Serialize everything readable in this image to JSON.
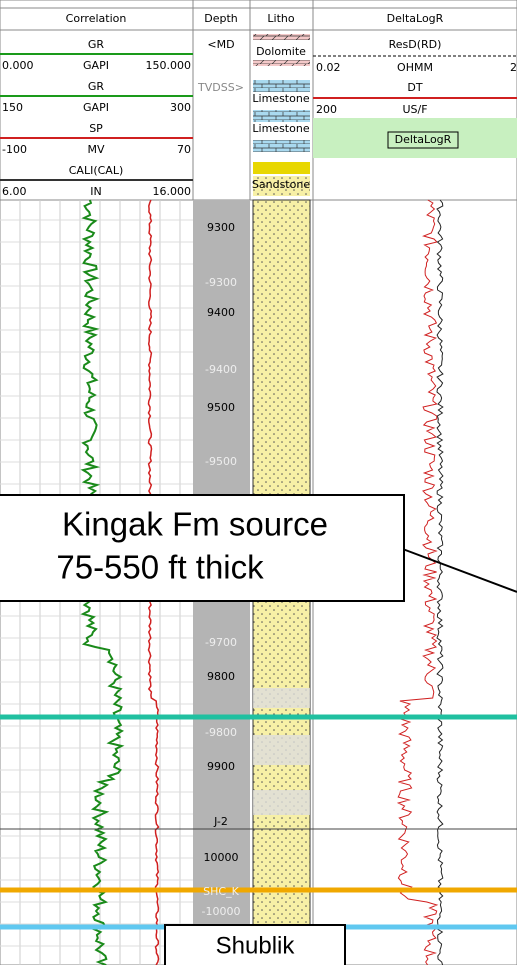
{
  "header": {
    "correlation": {
      "title": "Correlation",
      "tracks": [
        {
          "name": "GR",
          "min": "0.000",
          "unit": "GAPI",
          "max": "150.000"
        },
        {
          "name": "GR",
          "min": "150",
          "unit": "GAPI",
          "max": "300"
        },
        {
          "name": "SP",
          "min": "-100",
          "unit": "MV",
          "max": "70"
        },
        {
          "name": "CALI(CAL)",
          "min": "6.00",
          "unit": "IN",
          "max": "16.000"
        }
      ]
    },
    "depth": {
      "title": "Depth",
      "md": "<MD",
      "tvdss": "TVDSS>"
    },
    "litho": {
      "title": "Litho",
      "items": [
        "Dolomite",
        "Limestone",
        "Limestone",
        "Sandstone"
      ]
    },
    "deltalogr": {
      "title": "DeltaLogR",
      "tracks": [
        {
          "name": "ResD(RD)",
          "min": "0.02",
          "unit": "OHMM",
          "max": "2"
        },
        {
          "name": "DT",
          "min": "200",
          "unit": "US/F"
        }
      ],
      "legend": "DeltaLogR"
    }
  },
  "depth_labels": {
    "md": [
      "9300",
      "9400",
      "9500",
      "9800",
      "9900",
      "10000"
    ],
    "tvdss": [
      "-9300",
      "-9400",
      "-9500",
      "-9700",
      "-9800",
      "-10000"
    ],
    "markers": [
      "J-2",
      "SHC_K"
    ]
  },
  "annotations": {
    "callout": [
      "Kingak Fm source",
      "75-550 ft thick"
    ],
    "shublik": "Shublik"
  }
}
